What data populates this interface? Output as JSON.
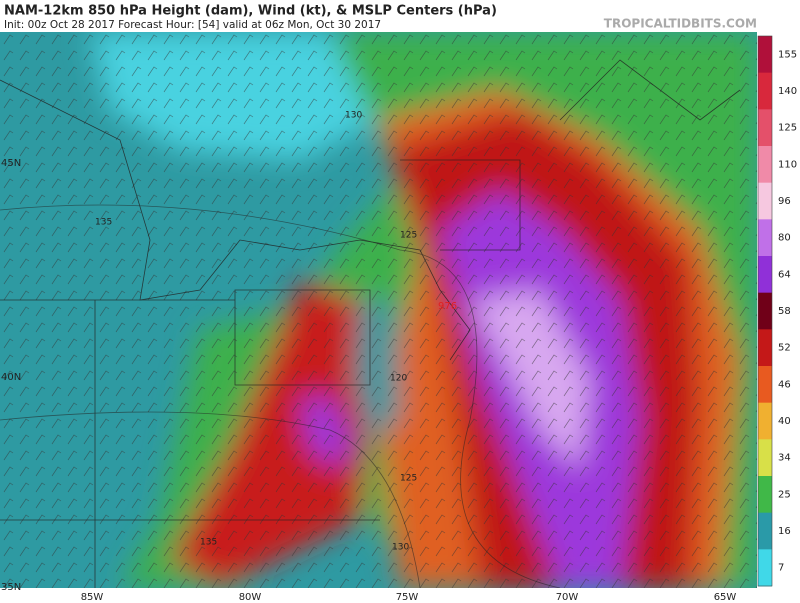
{
  "header": {
    "title": "NAM-12km 850 hPa Height (dam), Wind (kt), & MSLP Centers (hPa)",
    "subtitle": "Init: 00z Oct 28 2017   Forecast Hour: [54]   valid at 06z Mon, Oct 30 2017",
    "brand": "TROPICALTIDBITS.COM"
  },
  "map": {
    "lat_labels": [
      "45N",
      "40N",
      "35N"
    ],
    "lon_labels": [
      "85W",
      "80W",
      "75W",
      "70W",
      "65W"
    ],
    "contour_labels": [
      "130",
      "135",
      "125",
      "120",
      "125",
      "135",
      "130"
    ],
    "pressure_center": "976"
  },
  "colorbar": {
    "labels": [
      "155",
      "140",
      "125",
      "110",
      "96",
      "80",
      "64",
      "58",
      "52",
      "46",
      "40",
      "34",
      "25",
      "16",
      "7"
    ],
    "colors": [
      "#b0103a",
      "#d8283c",
      "#e4506a",
      "#f08aa8",
      "#f6c8e0",
      "#c070e8",
      "#9030d8",
      "#700018",
      "#c41818",
      "#e85a20",
      "#f0b030",
      "#d8e048",
      "#40b848",
      "#2a9aa8",
      "#40d8e8"
    ]
  }
}
